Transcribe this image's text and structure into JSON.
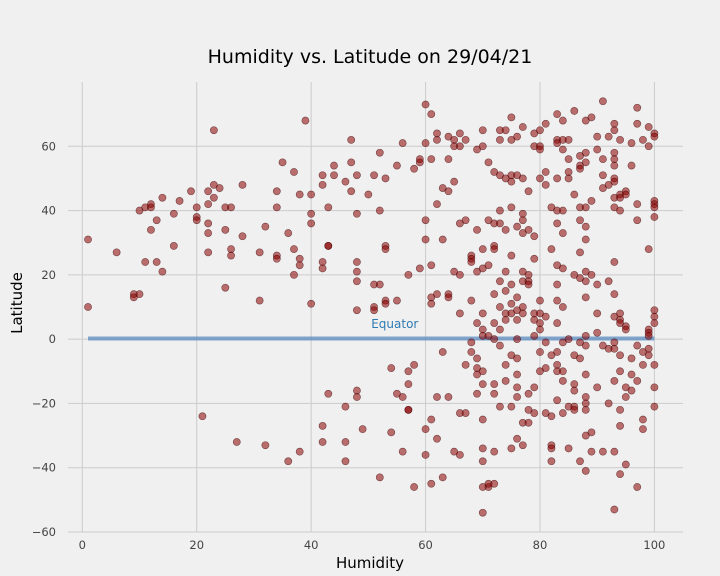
{
  "chart_data": {
    "type": "scatter",
    "title": "Humidity vs. Latitude on 29/04/21",
    "xlabel": "Humidity",
    "ylabel": "Latitude",
    "xlim": [
      -2.5,
      105
    ],
    "ylim": [
      -60,
      80
    ],
    "x_ticks": [
      0,
      20,
      40,
      60,
      80,
      100
    ],
    "y_ticks": [
      -60,
      -40,
      -20,
      0,
      20,
      40,
      60
    ],
    "grid": true,
    "point_color": "#8b0000",
    "regression_color": "#5b8bc0",
    "annotation_color": "#2e7bb3",
    "regression": {
      "x": [
        1,
        100
      ],
      "y": [
        0.2,
        0.2
      ]
    },
    "annotation": {
      "text": "Equator",
      "x": 50.5,
      "y": 3.5
    },
    "points": [
      [
        1,
        31
      ],
      [
        1,
        10
      ],
      [
        6,
        27
      ],
      [
        9,
        14
      ],
      [
        9,
        13
      ],
      [
        10,
        40
      ],
      [
        10,
        14
      ],
      [
        11,
        41
      ],
      [
        11,
        24
      ],
      [
        12,
        42
      ],
      [
        12,
        41
      ],
      [
        12,
        34
      ],
      [
        13,
        37
      ],
      [
        13,
        24
      ],
      [
        14,
        44
      ],
      [
        14,
        21
      ],
      [
        16,
        39
      ],
      [
        16,
        29
      ],
      [
        17,
        43
      ],
      [
        19,
        46
      ],
      [
        20,
        41
      ],
      [
        20,
        38
      ],
      [
        20,
        37
      ],
      [
        21,
        -24
      ],
      [
        22,
        46
      ],
      [
        22,
        42
      ],
      [
        22,
        36
      ],
      [
        22,
        33
      ],
      [
        22,
        27
      ],
      [
        23,
        48
      ],
      [
        23,
        44
      ],
      [
        23,
        65
      ],
      [
        24,
        47
      ],
      [
        25,
        41
      ],
      [
        25,
        34
      ],
      [
        25,
        16
      ],
      [
        26,
        41
      ],
      [
        26,
        28
      ],
      [
        26,
        26
      ],
      [
        27,
        -32
      ],
      [
        28,
        48
      ],
      [
        28,
        32
      ],
      [
        31,
        27
      ],
      [
        31,
        12
      ],
      [
        32,
        35
      ],
      [
        32,
        -33
      ],
      [
        34,
        46
      ],
      [
        34,
        41
      ],
      [
        34,
        26
      ],
      [
        34,
        25
      ],
      [
        35,
        55
      ],
      [
        36,
        33
      ],
      [
        36,
        -38
      ],
      [
        37,
        52
      ],
      [
        37,
        28
      ],
      [
        37,
        20
      ],
      [
        38,
        45
      ],
      [
        38,
        25
      ],
      [
        38,
        23
      ],
      [
        38,
        -35
      ],
      [
        39,
        68
      ],
      [
        40,
        45
      ],
      [
        40,
        39
      ],
      [
        40,
        36
      ],
      [
        40,
        11
      ],
      [
        42,
        48
      ],
      [
        42,
        -27
      ],
      [
        42,
        -32
      ],
      [
        42,
        51
      ],
      [
        42,
        24
      ],
      [
        42,
        22
      ],
      [
        43,
        41
      ],
      [
        43,
        29
      ],
      [
        43,
        29
      ],
      [
        43,
        -17
      ],
      [
        44,
        54
      ],
      [
        44,
        51
      ],
      [
        46,
        49
      ],
      [
        46,
        -21
      ],
      [
        46,
        -32
      ],
      [
        46,
        -38
      ],
      [
        47,
        62
      ],
      [
        47,
        55
      ],
      [
        47,
        46
      ],
      [
        48,
        51
      ],
      [
        48,
        39
      ],
      [
        48,
        24
      ],
      [
        48,
        21
      ],
      [
        48,
        18
      ],
      [
        48,
        9
      ],
      [
        48,
        -16
      ],
      [
        48,
        -18
      ],
      [
        49,
        -28
      ],
      [
        50,
        45
      ],
      [
        51,
        51
      ],
      [
        51,
        17
      ],
      [
        51,
        10
      ],
      [
        51,
        9
      ],
      [
        52,
        58
      ],
      [
        52,
        40
      ],
      [
        52,
        17
      ],
      [
        52,
        -43
      ],
      [
        53,
        50
      ],
      [
        53,
        29
      ],
      [
        53,
        28
      ],
      [
        53,
        12
      ],
      [
        53,
        11
      ],
      [
        54,
        -9
      ],
      [
        54,
        -29
      ],
      [
        55,
        54
      ],
      [
        55,
        12
      ],
      [
        55,
        -17
      ],
      [
        56,
        61
      ],
      [
        56,
        -18
      ],
      [
        56,
        -35
      ],
      [
        57,
        -22
      ],
      [
        57,
        -22
      ],
      [
        57,
        -14
      ],
      [
        57,
        -10
      ],
      [
        57,
        20
      ],
      [
        58,
        -46
      ],
      [
        58,
        -8
      ],
      [
        58,
        53
      ],
      [
        59,
        55
      ],
      [
        59,
        56
      ],
      [
        59,
        22
      ],
      [
        60,
        73
      ],
      [
        60,
        61
      ],
      [
        60,
        37
      ],
      [
        60,
        31
      ],
      [
        60,
        -28
      ],
      [
        60,
        -36
      ],
      [
        61,
        70
      ],
      [
        61,
        56
      ],
      [
        61,
        23
      ],
      [
        61,
        13
      ],
      [
        61,
        11
      ],
      [
        61,
        -25
      ],
      [
        61,
        -45
      ],
      [
        62,
        64
      ],
      [
        62,
        62
      ],
      [
        62,
        42
      ],
      [
        62,
        14
      ],
      [
        62,
        -18
      ],
      [
        62,
        -31
      ],
      [
        63,
        47
      ],
      [
        63,
        31
      ],
      [
        63,
        -4
      ],
      [
        63,
        -43
      ],
      [
        64,
        63
      ],
      [
        64,
        56
      ],
      [
        64,
        46
      ],
      [
        64,
        14
      ],
      [
        64,
        13
      ],
      [
        64,
        -18
      ],
      [
        65,
        62
      ],
      [
        65,
        60
      ],
      [
        65,
        49
      ],
      [
        65,
        21
      ],
      [
        65,
        -35
      ],
      [
        66,
        64
      ],
      [
        66,
        60
      ],
      [
        66,
        36
      ],
      [
        66,
        20
      ],
      [
        66,
        8
      ],
      [
        66,
        -23
      ],
      [
        66,
        -36
      ],
      [
        67,
        62
      ],
      [
        67,
        37
      ],
      [
        67,
        -8
      ],
      [
        67,
        -23
      ],
      [
        68,
        26
      ],
      [
        68,
        25
      ],
      [
        68,
        24
      ],
      [
        68,
        12
      ],
      [
        68,
        -1
      ],
      [
        68,
        -4
      ],
      [
        69,
        59
      ],
      [
        69,
        34
      ],
      [
        69,
        21
      ],
      [
        69,
        5
      ],
      [
        69,
        -6
      ],
      [
        69,
        -9
      ],
      [
        69,
        -11
      ],
      [
        69,
        -17
      ],
      [
        70,
        65
      ],
      [
        70,
        60
      ],
      [
        70,
        28
      ],
      [
        70,
        22
      ],
      [
        70,
        8
      ],
      [
        70,
        3
      ],
      [
        70,
        1
      ],
      [
        70,
        -10
      ],
      [
        70,
        -14
      ],
      [
        70,
        -25
      ],
      [
        70,
        -34
      ],
      [
        70,
        -38
      ],
      [
        70,
        -46
      ],
      [
        70,
        -54
      ],
      [
        71,
        55
      ],
      [
        71,
        37
      ],
      [
        71,
        23
      ],
      [
        71,
        1
      ],
      [
        71,
        -46
      ],
      [
        71,
        -45
      ],
      [
        72,
        52
      ],
      [
        72,
        36
      ],
      [
        72,
        29
      ],
      [
        72,
        28
      ],
      [
        72,
        14
      ],
      [
        72,
        5
      ],
      [
        72,
        0
      ],
      [
        72,
        -14
      ],
      [
        72,
        -17
      ],
      [
        72,
        -35
      ],
      [
        72,
        -45
      ],
      [
        73,
        65
      ],
      [
        73,
        62
      ],
      [
        73,
        51
      ],
      [
        73,
        40
      ],
      [
        73,
        36
      ],
      [
        73,
        18
      ],
      [
        73,
        10
      ],
      [
        73,
        3
      ],
      [
        73,
        -2
      ],
      [
        73,
        -21
      ],
      [
        74,
        65
      ],
      [
        74,
        50
      ],
      [
        74,
        34
      ],
      [
        74,
        21
      ],
      [
        74,
        15
      ],
      [
        74,
        8
      ],
      [
        74,
        6
      ],
      [
        74,
        -8
      ],
      [
        74,
        -13
      ],
      [
        75,
        69
      ],
      [
        75,
        62
      ],
      [
        75,
        51
      ],
      [
        75,
        49
      ],
      [
        75,
        41
      ],
      [
        75,
        26
      ],
      [
        75,
        17
      ],
      [
        75,
        11
      ],
      [
        75,
        8
      ],
      [
        75,
        -5
      ],
      [
        75,
        -21
      ],
      [
        75,
        -34
      ],
      [
        76,
        63
      ],
      [
        76,
        51
      ],
      [
        76,
        35
      ],
      [
        76,
        13
      ],
      [
        76,
        9
      ],
      [
        76,
        6
      ],
      [
        76,
        0
      ],
      [
        76,
        -6
      ],
      [
        76,
        -11
      ],
      [
        76,
        -15
      ],
      [
        76,
        -18
      ],
      [
        76,
        -31
      ],
      [
        77,
        66
      ],
      [
        77,
        50
      ],
      [
        77,
        39
      ],
      [
        77,
        37
      ],
      [
        77,
        33
      ],
      [
        77,
        21
      ],
      [
        77,
        18
      ],
      [
        77,
        10
      ],
      [
        77,
        8
      ],
      [
        77,
        -26
      ],
      [
        77,
        -33
      ],
      [
        78,
        46
      ],
      [
        78,
        34
      ],
      [
        78,
        20
      ],
      [
        78,
        18
      ],
      [
        78,
        17
      ],
      [
        78,
        -17
      ],
      [
        78,
        -22
      ],
      [
        78,
        -26
      ],
      [
        79,
        64
      ],
      [
        79,
        60
      ],
      [
        79,
        32
      ],
      [
        79,
        25
      ],
      [
        79,
        8
      ],
      [
        79,
        6
      ],
      [
        79,
        1
      ],
      [
        79,
        -15
      ],
      [
        79,
        -23
      ],
      [
        80,
        65
      ],
      [
        80,
        60
      ],
      [
        80,
        59
      ],
      [
        80,
        50
      ],
      [
        80,
        12
      ],
      [
        80,
        8
      ],
      [
        80,
        5
      ],
      [
        80,
        3
      ],
      [
        80,
        -4
      ],
      [
        80,
        -10
      ],
      [
        81,
        67
      ],
      [
        81,
        52
      ],
      [
        81,
        48
      ],
      [
        81,
        7
      ],
      [
        81,
        -1
      ],
      [
        81,
        -9
      ],
      [
        81,
        -23
      ],
      [
        82,
        41
      ],
      [
        82,
        28
      ],
      [
        82,
        -5
      ],
      [
        82,
        -24
      ],
      [
        82,
        -33
      ],
      [
        82,
        -34
      ],
      [
        82,
        -38
      ],
      [
        83,
        70
      ],
      [
        83,
        62
      ],
      [
        83,
        61
      ],
      [
        83,
        50
      ],
      [
        83,
        40
      ],
      [
        83,
        36
      ],
      [
        83,
        23
      ],
      [
        83,
        17
      ],
      [
        83,
        12
      ],
      [
        83,
        5
      ],
      [
        83,
        -4
      ],
      [
        83,
        -8
      ],
      [
        83,
        -10
      ],
      [
        83,
        -19
      ],
      [
        84,
        68
      ],
      [
        84,
        62
      ],
      [
        84,
        59
      ],
      [
        84,
        40
      ],
      [
        84,
        33
      ],
      [
        84,
        22
      ],
      [
        84,
        10
      ],
      [
        84,
        -1
      ],
      [
        84,
        -10
      ],
      [
        84,
        -13
      ],
      [
        84,
        -23
      ],
      [
        85,
        62
      ],
      [
        85,
        52
      ],
      [
        85,
        56
      ],
      [
        85,
        50
      ],
      [
        85,
        0
      ],
      [
        85,
        -21
      ],
      [
        85,
        -34
      ],
      [
        86,
        71
      ],
      [
        86,
        45
      ],
      [
        86,
        20
      ],
      [
        86,
        -5
      ],
      [
        86,
        -14
      ],
      [
        86,
        -16
      ],
      [
        86,
        -21
      ],
      [
        86,
        -22
      ],
      [
        87,
        57
      ],
      [
        87,
        54
      ],
      [
        87,
        53
      ],
      [
        87,
        41
      ],
      [
        87,
        37
      ],
      [
        87,
        27
      ],
      [
        87,
        19
      ],
      [
        87,
        -1
      ],
      [
        87,
        -6
      ],
      [
        87,
        -38
      ],
      [
        88,
        68
      ],
      [
        88,
        58
      ],
      [
        88,
        55
      ],
      [
        88,
        41
      ],
      [
        88,
        35
      ],
      [
        88,
        31
      ],
      [
        88,
        21
      ],
      [
        88,
        18
      ],
      [
        88,
        13
      ],
      [
        88,
        1
      ],
      [
        88,
        -2
      ],
      [
        88,
        -11
      ],
      [
        88,
        -18
      ],
      [
        88,
        -20
      ],
      [
        88,
        -22
      ],
      [
        88,
        -30
      ],
      [
        88,
        -41
      ],
      [
        89,
        69
      ],
      [
        89,
        43
      ],
      [
        89,
        20
      ],
      [
        89,
        -29
      ],
      [
        89,
        -35
      ],
      [
        90,
        63
      ],
      [
        90,
        59
      ],
      [
        90,
        17
      ],
      [
        90,
        8
      ],
      [
        90,
        2
      ],
      [
        90,
        -15
      ],
      [
        91,
        74
      ],
      [
        91,
        56
      ],
      [
        91,
        51
      ],
      [
        91,
        47
      ],
      [
        91,
        -2
      ],
      [
        91,
        -35
      ],
      [
        92,
        63
      ],
      [
        92,
        48
      ],
      [
        92,
        18
      ],
      [
        92,
        -3
      ],
      [
        92,
        -20
      ],
      [
        93,
        67
      ],
      [
        93,
        65
      ],
      [
        93,
        58
      ],
      [
        93,
        56
      ],
      [
        93,
        54
      ],
      [
        93,
        50
      ],
      [
        93,
        49
      ],
      [
        93,
        44
      ],
      [
        93,
        41
      ],
      [
        93,
        24
      ],
      [
        93,
        14
      ],
      [
        93,
        7
      ],
      [
        93,
        -1
      ],
      [
        93,
        -3
      ],
      [
        93,
        -13
      ],
      [
        93,
        -35
      ],
      [
        93,
        -53
      ],
      [
        94,
        62
      ],
      [
        94,
        45
      ],
      [
        94,
        44
      ],
      [
        94,
        40
      ],
      [
        94,
        8
      ],
      [
        94,
        6
      ],
      [
        94,
        5
      ],
      [
        94,
        -5
      ],
      [
        94,
        -10
      ],
      [
        94,
        -22
      ],
      [
        94,
        -27
      ],
      [
        94,
        -42
      ],
      [
        95,
        46
      ],
      [
        95,
        45
      ],
      [
        95,
        4
      ],
      [
        95,
        3
      ],
      [
        95,
        -15
      ],
      [
        95,
        -18
      ],
      [
        95,
        -39
      ],
      [
        96,
        61
      ],
      [
        96,
        54
      ],
      [
        96,
        -6
      ],
      [
        96,
        -11
      ],
      [
        96,
        -16
      ],
      [
        97,
        72
      ],
      [
        97,
        67
      ],
      [
        97,
        37
      ],
      [
        97,
        42
      ],
      [
        97,
        -2
      ],
      [
        97,
        -13
      ],
      [
        97,
        -46
      ],
      [
        98,
        62
      ],
      [
        98,
        -4
      ],
      [
        98,
        -8
      ],
      [
        98,
        -25
      ],
      [
        98,
        -28
      ],
      [
        99,
        66
      ],
      [
        99,
        60
      ],
      [
        99,
        28
      ],
      [
        99,
        3
      ],
      [
        99,
        2
      ],
      [
        99,
        1
      ],
      [
        99,
        -3
      ],
      [
        99,
        -5
      ],
      [
        100,
        64
      ],
      [
        100,
        63
      ],
      [
        100,
        43
      ],
      [
        100,
        42
      ],
      [
        100,
        41
      ],
      [
        100,
        38
      ],
      [
        100,
        9
      ],
      [
        100,
        7
      ],
      [
        100,
        5
      ],
      [
        100,
        -8
      ],
      [
        100,
        -15
      ],
      [
        100,
        -21
      ]
    ]
  }
}
